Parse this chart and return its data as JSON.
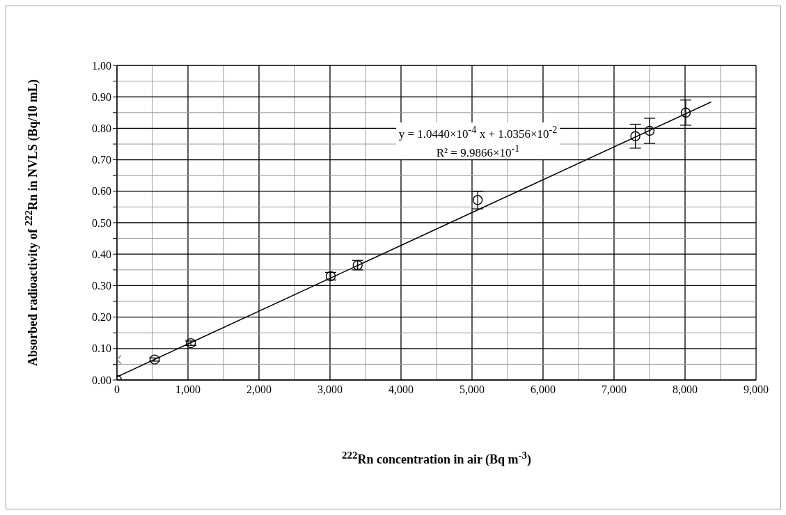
{
  "chart_data": {
    "type": "scatter",
    "xlabel": "$^{222}$Rn concentration in air (Bq m$^{-3}$)",
    "ylabel": "Absorbed radioactivity of $^{222}$Rn in NVLS (Bq/10 mL)",
    "annotations": [
      "y = 1.0440×10$^{-4}$ x + 1.0356×10$^{-2}$",
      "R² = 9.9866×10$^{-1}$"
    ],
    "series": [
      {
        "marker": "circle",
        "color": "#000000",
        "x": [
          0,
          530,
          1040,
          3010,
          3390,
          5080,
          7300,
          7500,
          8010
        ],
        "values": [
          0.0,
          0.065,
          0.117,
          0.33,
          0.365,
          0.572,
          0.775,
          0.792,
          0.85
        ],
        "errors": [
          null,
          0.005,
          0.007,
          0.012,
          0.015,
          0.028,
          0.038,
          0.04,
          0.04
        ]
      },
      {
        "type": "scatter",
        "marker": "cross",
        "color": "#8064a2",
        "x": [
          0
        ],
        "values": [
          0.065
        ]
      },
      {
        "type": "line",
        "color": "#000000",
        "x": [
          0,
          8370
        ],
        "values": [
          0.01,
          0.884
        ]
      }
    ],
    "xlim": [
      0,
      9000
    ],
    "xticks": [
      {
        "value": 0,
        "label": "0"
      },
      {
        "value": 500,
        "label": null
      },
      {
        "value": 1000,
        "label": "1,000"
      },
      {
        "value": 1500,
        "label": null
      },
      {
        "value": 2000,
        "label": "2,000"
      },
      {
        "value": 2500,
        "label": null
      },
      {
        "value": 3000,
        "label": "3,000"
      },
      {
        "value": 3500,
        "label": null
      },
      {
        "value": 4000,
        "label": "4,000"
      },
      {
        "value": 4500,
        "label": null
      },
      {
        "value": 5000,
        "label": "5,000"
      },
      {
        "value": 5500,
        "label": null
      },
      {
        "value": 6000,
        "label": "6,000"
      },
      {
        "value": 6500,
        "label": null
      },
      {
        "value": 7000,
        "label": "7,000"
      },
      {
        "value": 7500,
        "label": null
      },
      {
        "value": 8000,
        "label": "8,000"
      },
      {
        "value": 8500,
        "label": null
      },
      {
        "value": 9000,
        "label": "9,000"
      }
    ],
    "ylim": [
      0,
      1
    ],
    "yticks": [
      {
        "value": 0,
        "label": "0.00"
      },
      {
        "value": 0.05,
        "label": null
      },
      {
        "value": 0.1,
        "label": "0.10"
      },
      {
        "value": 0.15,
        "label": null
      },
      {
        "value": 0.2,
        "label": "0.20"
      },
      {
        "value": 0.25,
        "label": null
      },
      {
        "value": 0.3,
        "label": "0.30"
      },
      {
        "value": 0.35,
        "label": null
      },
      {
        "value": 0.4,
        "label": "0.40"
      },
      {
        "value": 0.45,
        "label": null
      },
      {
        "value": 0.5,
        "label": "0.50"
      },
      {
        "value": 0.55,
        "label": null
      },
      {
        "value": 0.6,
        "label": "0.60"
      },
      {
        "value": 0.65,
        "label": null
      },
      {
        "value": 0.7,
        "label": "0.70"
      },
      {
        "value": 0.75,
        "label": null
      },
      {
        "value": 0.8,
        "label": "0.80"
      },
      {
        "value": 0.85,
        "label": null
      },
      {
        "value": 0.9,
        "label": "0.90"
      },
      {
        "value": 0.95,
        "label": null
      },
      {
        "value": 1,
        "label": "1.00"
      }
    ],
    "grid": true,
    "legend": false
  }
}
